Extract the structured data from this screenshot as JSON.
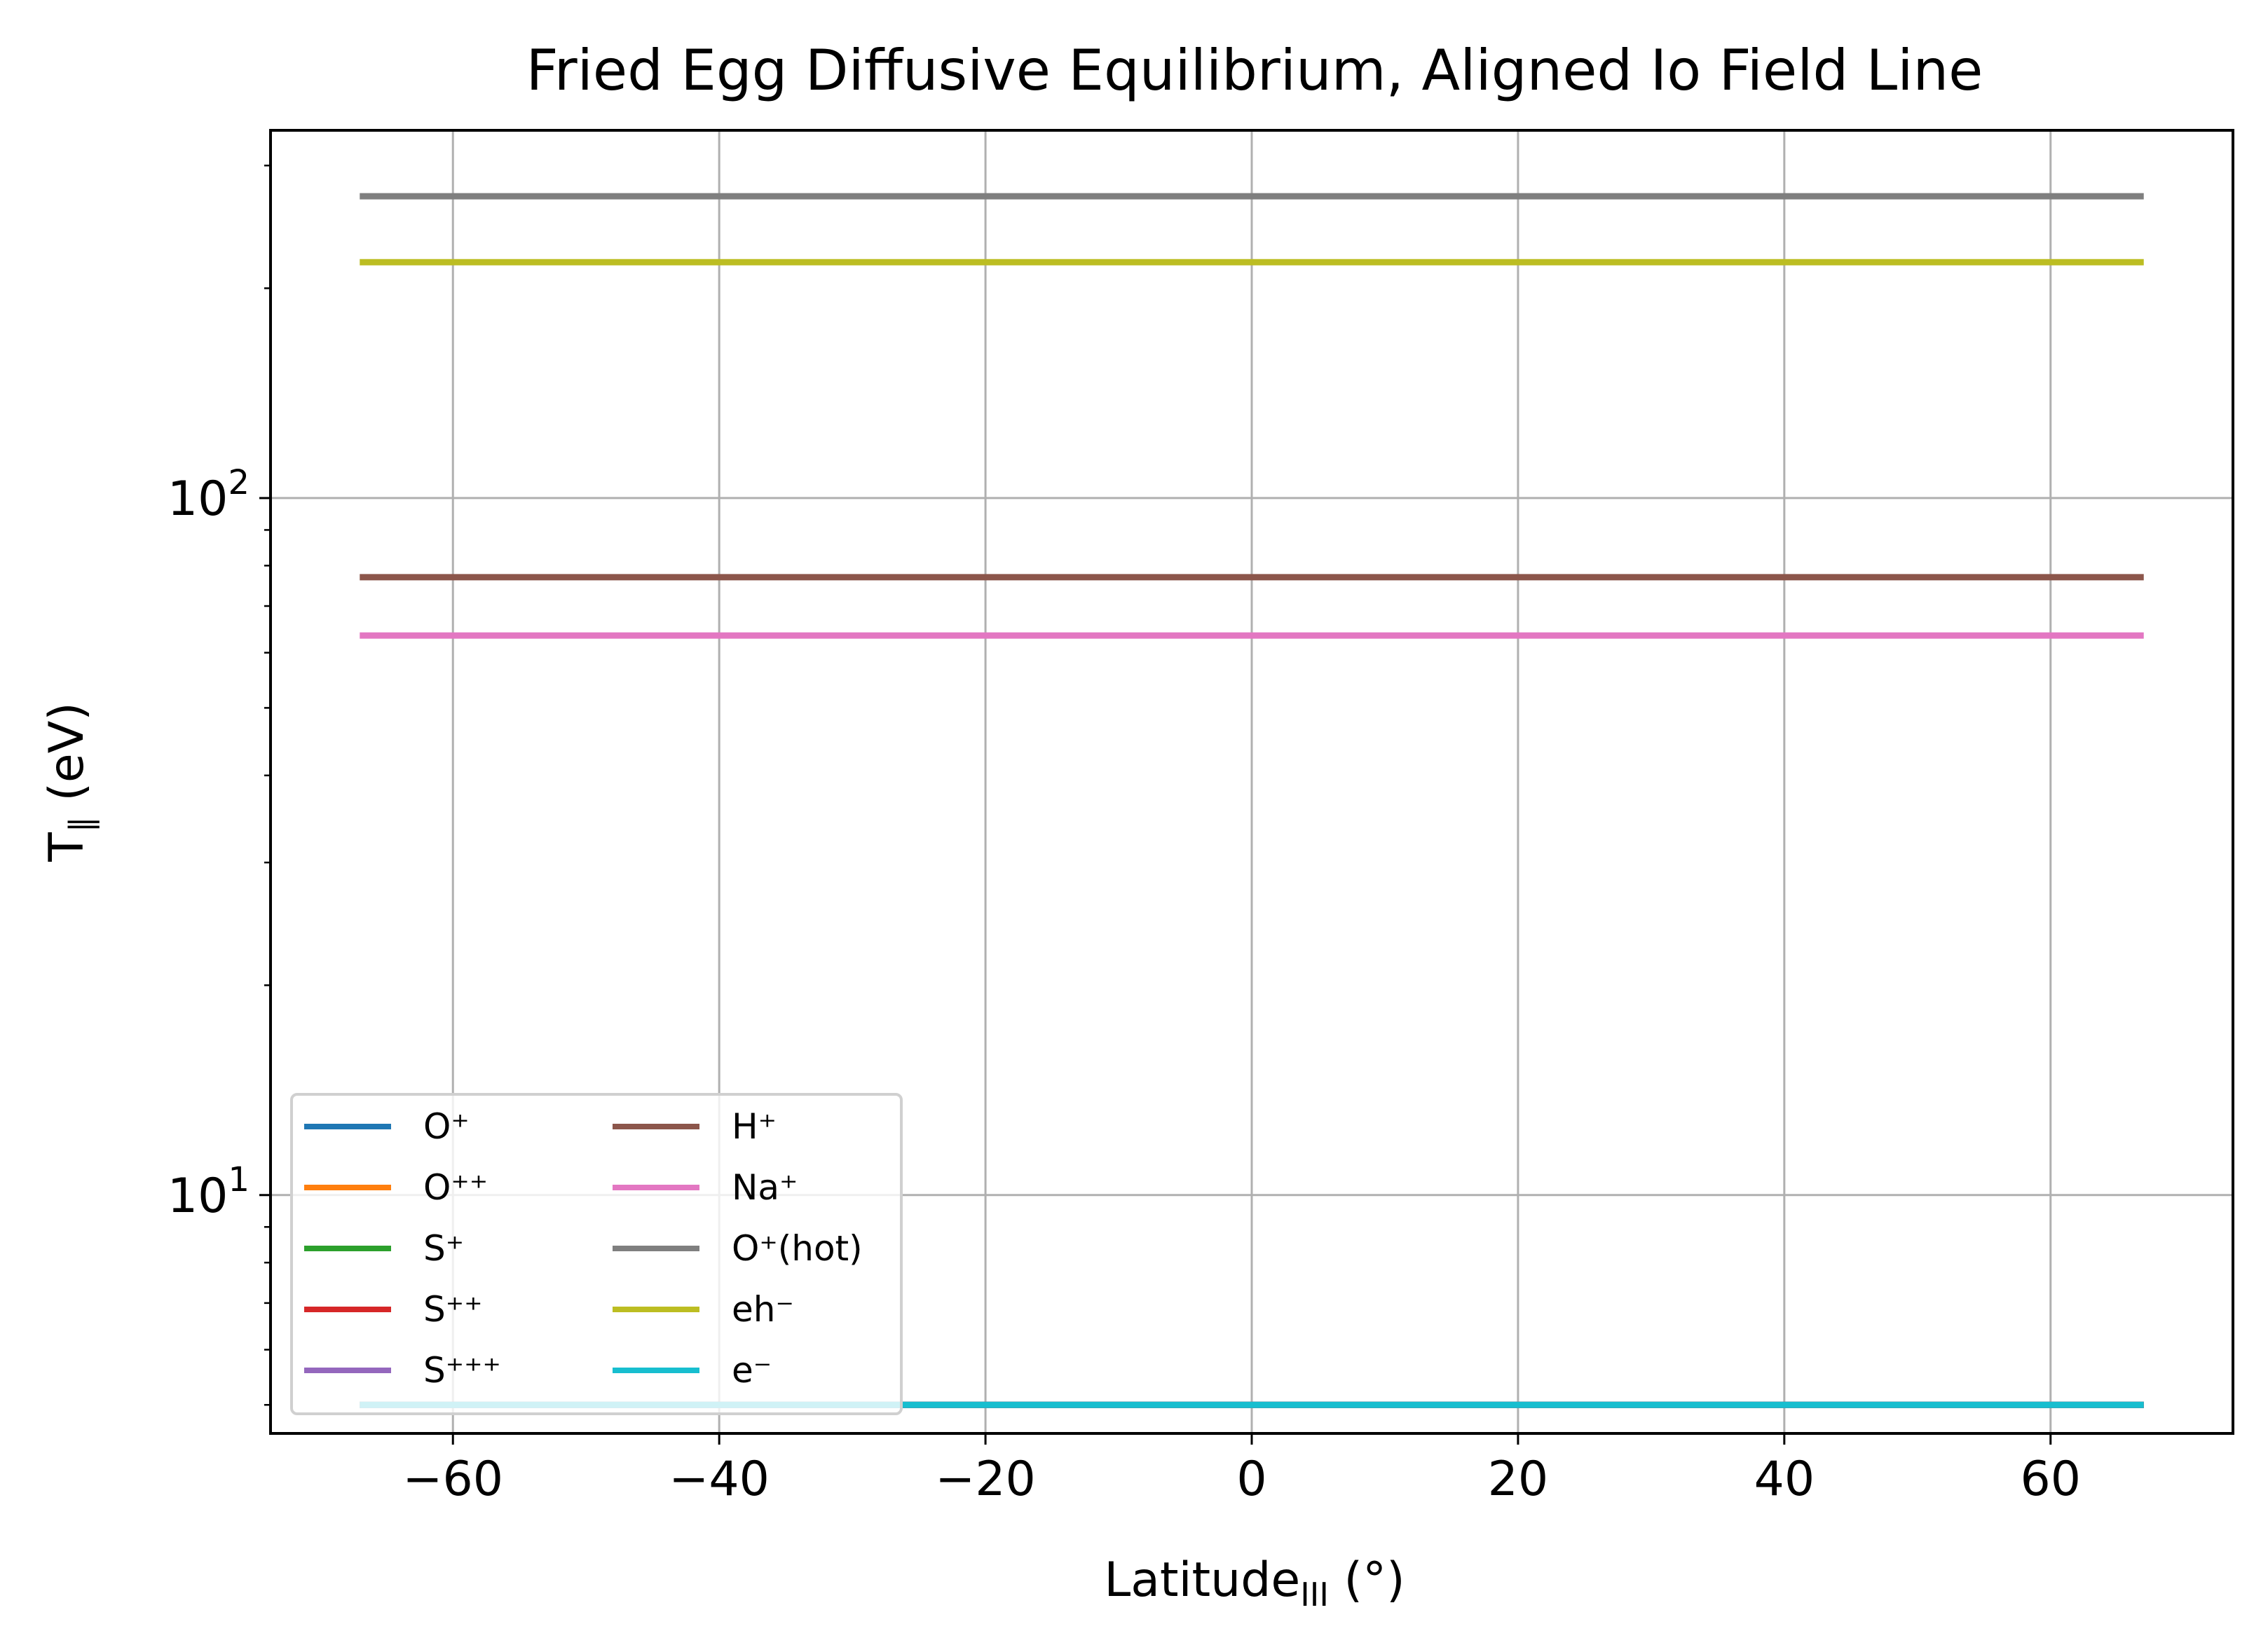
{
  "chart_data": {
    "type": "line",
    "title": "Fried Egg Diffusive Equilibrium, Aligned Io Field Line",
    "xlabel": {
      "main": "Latitude",
      "sub": "III",
      "suffix": " (°)"
    },
    "ylabel": {
      "main": "T",
      "sub": "∥",
      "suffix": " (eV)"
    },
    "xlim": [
      -73.7,
      73.7
    ],
    "ylim": [
      4.55,
      337
    ],
    "yscale": "log",
    "grid": true,
    "legend": {
      "placement": "lower-left",
      "columns": 2
    },
    "x_ticks": [
      {
        "value": -60,
        "label": "−60"
      },
      {
        "value": -40,
        "label": "−40"
      },
      {
        "value": -20,
        "label": "−20"
      },
      {
        "value": 0,
        "label": "0"
      },
      {
        "value": 20,
        "label": "20"
      },
      {
        "value": 40,
        "label": "40"
      },
      {
        "value": 60,
        "label": "60"
      }
    ],
    "y_ticks": [
      {
        "value": 10,
        "base": "10",
        "exp": "1"
      },
      {
        "value": 100,
        "base": "10",
        "exp": "2"
      }
    ],
    "x_range": [
      -67,
      67
    ],
    "series": [
      {
        "name": "O⁺",
        "color": "#1f77b4",
        "y": 5.0
      },
      {
        "name": "O⁺⁺",
        "color": "#ff7f0e",
        "y": 5.0
      },
      {
        "name": "S⁺",
        "color": "#2ca02c",
        "y": 5.0
      },
      {
        "name": "S⁺⁺",
        "color": "#d62728",
        "y": 5.0
      },
      {
        "name": "S⁺⁺⁺",
        "color": "#9467bd",
        "y": 5.0
      },
      {
        "name": "H⁺",
        "color": "#8c564b",
        "y": 77
      },
      {
        "name": "Na⁺",
        "color": "#e377c2",
        "y": 63.5
      },
      {
        "name": "O⁺(hot)",
        "color": "#7f7f7f",
        "y": 271
      },
      {
        "name": "eh⁻",
        "color": "#bcbd22",
        "y": 218
      },
      {
        "name": "e⁻",
        "color": "#17becf",
        "y": 5.0
      }
    ]
  }
}
